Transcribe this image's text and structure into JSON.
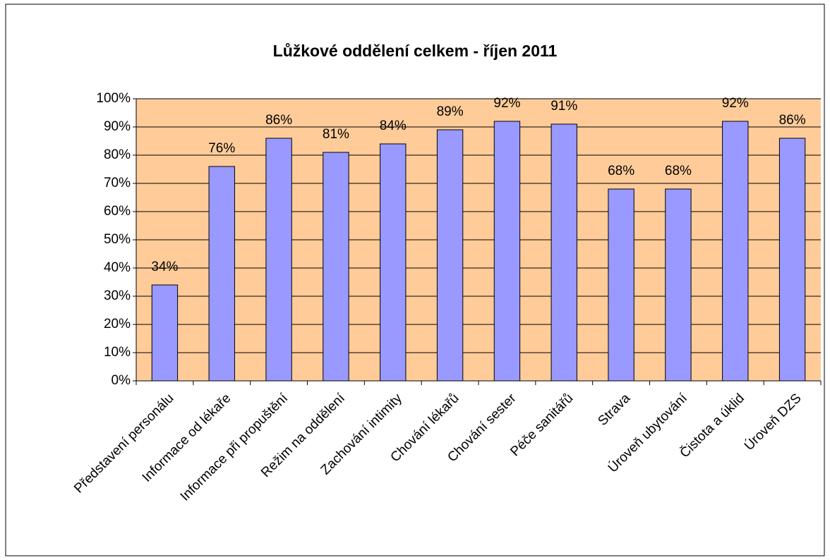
{
  "chart_data": {
    "type": "bar",
    "title": "Lůžkové oddělení celkem - říjen 2011",
    "categories": [
      "Představení personálu",
      "Informace od lékaře",
      "Informace při propuštění",
      "Režim na oddělení",
      "Zachování intimity",
      "Chování lékařů",
      "Chování sester",
      "Péče sanitářů",
      "Strava",
      "Úroveň ubytování",
      "Čistota a úklid",
      "Úroveň DZS"
    ],
    "values": [
      34,
      76,
      86,
      81,
      84,
      89,
      92,
      91,
      68,
      68,
      92,
      86
    ],
    "value_labels": [
      "34%",
      "76%",
      "86%",
      "81%",
      "84%",
      "89%",
      "92%",
      "91%",
      "68%",
      "68%",
      "92%",
      "86%"
    ],
    "color": "#9999ff",
    "ylim": [
      0,
      100
    ],
    "yticks": [
      {
        "value": 0,
        "label": "0%"
      },
      {
        "value": 10,
        "label": "10%"
      },
      {
        "value": 20,
        "label": "20%"
      },
      {
        "value": 30,
        "label": "30%"
      },
      {
        "value": 40,
        "label": "40%"
      },
      {
        "value": 50,
        "label": "50%"
      },
      {
        "value": 60,
        "label": "60%"
      },
      {
        "value": 70,
        "label": "70%"
      },
      {
        "value": 80,
        "label": "80%"
      },
      {
        "value": 90,
        "label": "90%"
      },
      {
        "value": 100,
        "label": "100%"
      }
    ],
    "grid": true
  }
}
